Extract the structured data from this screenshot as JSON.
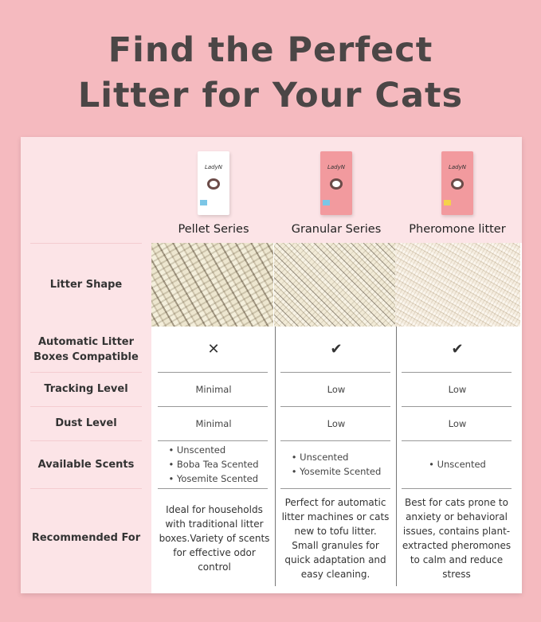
{
  "title": {
    "line1": "Find the Perfect",
    "line2": "Litter for Your Cats"
  },
  "row_labels": {
    "shape": "Litter Shape",
    "compatible": "Automatic Litter Boxes Compatible",
    "tracking": "Tracking Level",
    "dust": "Dust Level",
    "scents": "Available Scents",
    "recommended": "Recommended For"
  },
  "products": [
    {
      "name": "Pellet Series",
      "brand": "LadyN",
      "box_color": "#ffffff",
      "tag_color": "#7cc6e6",
      "compatible": "✕",
      "compatible_icon": "cross-icon",
      "tracking": "Minimal",
      "dust": "Minimal",
      "scents": [
        "Unscented",
        "Boba Tea Scented",
        "Yosemite Scented"
      ],
      "recommended": "Ideal for households with traditional litter boxes.Variety of scents for effective odor control"
    },
    {
      "name": "Granular Series",
      "brand": "LadyN",
      "box_color": "#f29a9e",
      "tag_color": "#7cc6e6",
      "compatible": "✔",
      "compatible_icon": "check-icon",
      "tracking": "Low",
      "dust": "Low",
      "scents": [
        "Unscented",
        "Yosemite Scented"
      ],
      "recommended": "Perfect for automatic litter machines or cats new to tofu litter. Small granules for quick adaptation and easy cleaning."
    },
    {
      "name": "Pheromone litter",
      "brand": "LadyN",
      "box_color": "#f29a9e",
      "tag_color": "#f5d24a",
      "compatible": "✔",
      "compatible_icon": "check-icon",
      "tracking": "Low",
      "dust": "Low",
      "scents": [
        "Unscented"
      ],
      "recommended": "Best for cats prone to anxiety or behavioral issues, contains plant-extracted pheromones to calm and reduce stress"
    }
  ]
}
